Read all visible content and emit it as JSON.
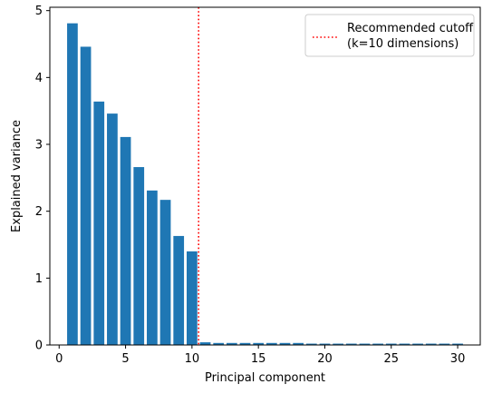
{
  "chart_data": {
    "type": "bar",
    "x": [
      1,
      2,
      3,
      4,
      5,
      6,
      7,
      8,
      9,
      10,
      11,
      12,
      13,
      14,
      15,
      16,
      17,
      18,
      19,
      20,
      21,
      22,
      23,
      24,
      25,
      26,
      27,
      28,
      29,
      30
    ],
    "values": [
      4.81,
      4.46,
      3.64,
      3.46,
      3.11,
      2.66,
      2.31,
      2.17,
      1.63,
      1.4,
      0.04,
      0.03,
      0.03,
      0.03,
      0.03,
      0.03,
      0.03,
      0.03,
      0.02,
      0.02,
      0.02,
      0.02,
      0.02,
      0.02,
      0.02,
      0.02,
      0.02,
      0.02,
      0.02,
      0.02
    ],
    "bar_color": "#1f77b4",
    "xlabel": "Principal component",
    "ylabel": "Explained variance",
    "xlim": [
      -0.7,
      31.7
    ],
    "ylim": [
      0,
      5.05
    ],
    "xticks": [
      0,
      5,
      10,
      15,
      20,
      25,
      30
    ],
    "yticks": [
      0,
      1,
      2,
      3,
      4,
      5
    ],
    "grid": false,
    "cutoff": {
      "x": 10.5,
      "color": "#ff0000",
      "style": "dotted",
      "label_line1": "Recommended cutoff",
      "label_line2": "(k=10 dimensions)"
    },
    "legend_position": "top-right"
  }
}
